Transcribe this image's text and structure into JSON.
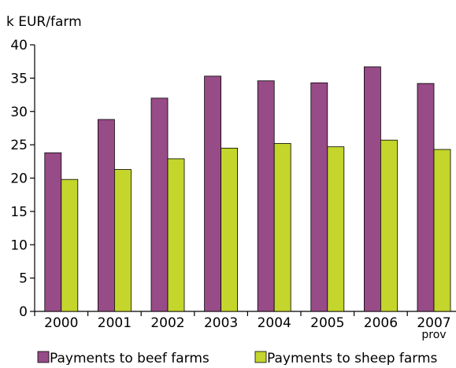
{
  "chart_data": {
    "type": "bar",
    "ylabel": "k EUR/farm",
    "xlabel": "",
    "title": "",
    "categories": [
      "2000",
      "2001",
      "2002",
      "2003",
      "2004",
      "2005",
      "2006",
      "2007"
    ],
    "category_sublabels": [
      "",
      "",
      "",
      "",
      "",
      "",
      "",
      "prov"
    ],
    "ylim": [
      0,
      40
    ],
    "yticks": [
      0,
      5,
      10,
      15,
      20,
      25,
      30,
      35,
      40
    ],
    "grid": false,
    "legend_position": "bottom",
    "series": [
      {
        "name": "Payments to beef farms",
        "color": "#974b87",
        "values": [
          23.8,
          28.8,
          32.0,
          35.3,
          34.6,
          34.3,
          36.7,
          34.2
        ]
      },
      {
        "name": "Payments to sheep farms",
        "color": "#c4d52c",
        "values": [
          19.8,
          21.3,
          22.9,
          24.5,
          25.2,
          24.7,
          25.7,
          24.3
        ]
      }
    ]
  }
}
